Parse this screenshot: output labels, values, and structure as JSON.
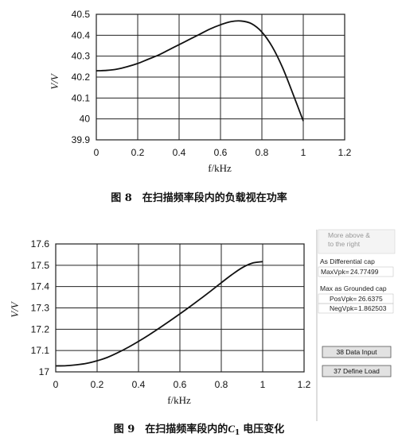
{
  "chart_data": [
    {
      "type": "line",
      "x": [
        0,
        0.05,
        0.1,
        0.15,
        0.2,
        0.25,
        0.3,
        0.35,
        0.4,
        0.45,
        0.5,
        0.55,
        0.6,
        0.65,
        0.7,
        0.75,
        0.8,
        0.85,
        0.9,
        0.95,
        1.0
      ],
      "series": [
        {
          "values": [
            40.23,
            40.232,
            40.238,
            40.25,
            40.265,
            40.285,
            40.305,
            40.33,
            40.355,
            40.38,
            40.405,
            40.43,
            40.45,
            40.465,
            40.468,
            40.455,
            40.415,
            40.345,
            40.245,
            40.12,
            39.99
          ]
        }
      ],
      "xlabel": "f/kHz",
      "ylabel": "V/V",
      "xlim": [
        0,
        1.2
      ],
      "ylim": [
        39.9,
        40.5
      ],
      "xticks": [
        "0",
        "0.2",
        "0.4",
        "0.6",
        "0.8",
        "1",
        "1.2"
      ],
      "yticks": [
        "39.9",
        "40",
        "40.1",
        "40.2",
        "40.3",
        "40.4",
        "40.5"
      ],
      "grid": true,
      "caption": "图 8　在扫描频率段内的负载视在功率"
    },
    {
      "type": "line",
      "x": [
        0,
        0.05,
        0.1,
        0.15,
        0.2,
        0.25,
        0.3,
        0.35,
        0.4,
        0.45,
        0.5,
        0.55,
        0.6,
        0.65,
        0.7,
        0.75,
        0.8,
        0.85,
        0.9,
        0.95,
        1.0
      ],
      "series": [
        {
          "values": [
            17.028,
            17.029,
            17.033,
            17.04,
            17.052,
            17.068,
            17.09,
            17.115,
            17.143,
            17.173,
            17.205,
            17.238,
            17.272,
            17.307,
            17.343,
            17.38,
            17.418,
            17.455,
            17.488,
            17.51,
            17.517
          ]
        }
      ],
      "xlabel": "f/kHz",
      "ylabel": "V/V",
      "xlim": [
        0,
        1.2
      ],
      "ylim": [
        17.0,
        17.6
      ],
      "xticks": [
        "0",
        "0.2",
        "0.4",
        "0.6",
        "0.8",
        "1",
        "1.2"
      ],
      "yticks": [
        "17",
        "17.1",
        "17.2",
        "17.3",
        "17.4",
        "17.5",
        "17.6"
      ],
      "grid": true,
      "caption_prefix": "图 9　在扫描频率段内的",
      "caption_var": "C",
      "caption_sub": "1",
      "caption_suffix": "电压变化"
    }
  ],
  "side_panel": {
    "note_line1": "More above &",
    "note_line2": "to the right",
    "diff_title": "As Differential cap",
    "max_label": "MaxVpk=",
    "max_value": "24.77499",
    "ground_title": "Max as Grounded cap",
    "pos_label": "PosVpk=",
    "pos_value": "26.6375",
    "neg_label": "NegVpk=",
    "neg_value": "1.862503",
    "btn1": "38 Data Input",
    "btn2": "37 Define Load"
  }
}
